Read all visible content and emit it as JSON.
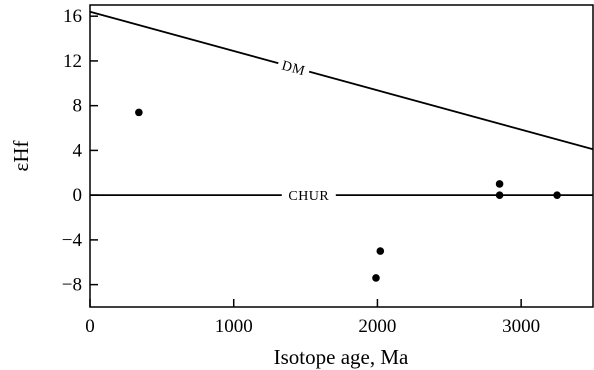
{
  "chart_data": {
    "type": "scatter",
    "title": "",
    "xlabel": "Isotope age, Ma",
    "ylabel": "εHf",
    "xlim": [
      0,
      3500
    ],
    "ylim": [
      -10,
      17
    ],
    "x_ticks": [
      0,
      1000,
      2000,
      3000
    ],
    "x_tick_labels": [
      "0",
      "1000",
      "2000",
      "3000"
    ],
    "y_ticks": [
      -8,
      -4,
      0,
      4,
      8,
      12,
      16
    ],
    "y_tick_labels": [
      "−8",
      "−4",
      "0",
      "4",
      "8",
      "12",
      "16"
    ],
    "grid": false,
    "legend": "none",
    "reference_lines": [
      {
        "label": "DM",
        "x": [
          0,
          3500
        ],
        "y": [
          16.4,
          4.1
        ]
      },
      {
        "label": "CHUR",
        "x": [
          0,
          3500
        ],
        "y": [
          0,
          0
        ]
      }
    ],
    "points": [
      {
        "x": 340,
        "y": 7.4
      },
      {
        "x": 2020,
        "y": -5.0
      },
      {
        "x": 1990,
        "y": -7.4
      },
      {
        "x": 2850,
        "y": 1.0
      },
      {
        "x": 2850,
        "y": 0.0
      },
      {
        "x": 3250,
        "y": 0.0
      }
    ]
  }
}
